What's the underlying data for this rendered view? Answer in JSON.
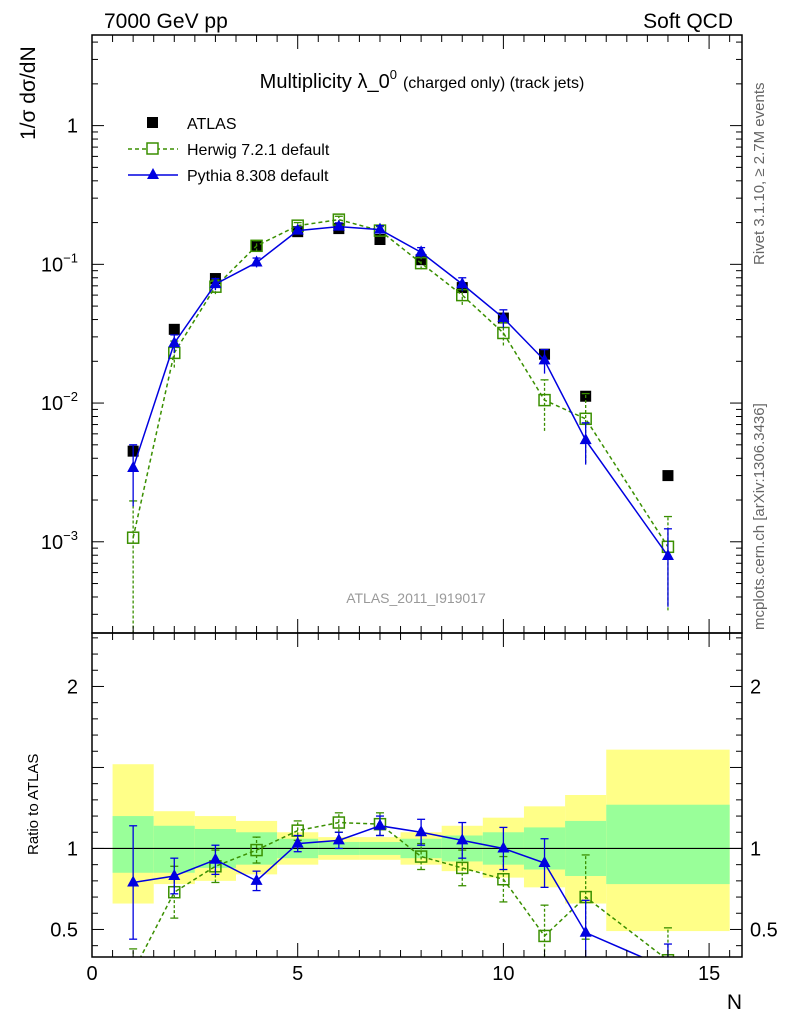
{
  "header": {
    "left": "7000 GeV pp",
    "right": "Soft QCD"
  },
  "side_text": {
    "rivet": "Rivet 3.1.10, ≥ 2.7M events",
    "mcplots": "mcplots.cern.ch [arXiv:1306.3436]"
  },
  "chart_data": {
    "type": "scatter",
    "title_main": "Multiplicity λ_0",
    "title_sup": "0",
    "title_suffix": "(charged only) (track jets)",
    "analysis_id": "ATLAS_2011_I919017",
    "ylabel_top": "1/σ dσ/dN",
    "ylabel_ratio": "Ratio to ATLAS",
    "xlabel": "N",
    "top_yscale": "log",
    "top_ylim": [
      0.00022,
      4.5
    ],
    "top_yticks": [
      {
        "v": 0.001,
        "base": "10",
        "exp": "−3"
      },
      {
        "v": 0.01,
        "base": "10",
        "exp": "−2"
      },
      {
        "v": 0.1,
        "base": "10",
        "exp": "−1"
      },
      {
        "v": 1,
        "base": "1",
        "exp": ""
      }
    ],
    "xlim": [
      0,
      15.8
    ],
    "xticks": [
      0,
      5,
      10,
      15
    ],
    "ratio_ylim": [
      0.33,
      2.33
    ],
    "ratio_yticks": [
      0.5,
      1,
      2
    ],
    "legend_position": "top-left",
    "series": [
      {
        "name": "ATLAS",
        "color": "#000000",
        "marker": "filled-square",
        "x": [
          1,
          2,
          3,
          4,
          5,
          6,
          7,
          8,
          9,
          10,
          11,
          12,
          14
        ],
        "y": [
          0.0045,
          0.034,
          0.079,
          0.136,
          0.172,
          0.181,
          0.151,
          0.108,
          0.068,
          0.041,
          0.0225,
          0.0112,
          0.003
        ]
      },
      {
        "name": "Herwig 7.2.1 default",
        "color": "#3a8f00",
        "marker": "open-square",
        "line": "dashed",
        "x": [
          1,
          2,
          3,
          4,
          5,
          6,
          7,
          8,
          9,
          10,
          11,
          12,
          14
        ],
        "y": [
          0.00107,
          0.023,
          0.069,
          0.136,
          0.19,
          0.21,
          0.175,
          0.102,
          0.06,
          0.032,
          0.0105,
          0.0077,
          0.00092
        ],
        "err": [
          0.0009,
          0.005,
          0.008,
          0.012,
          0.01,
          0.012,
          0.012,
          0.01,
          0.009,
          0.006,
          0.0042,
          0.004,
          0.0006
        ],
        "ratio": [
          0.24,
          0.73,
          0.89,
          0.99,
          1.11,
          1.16,
          1.15,
          0.95,
          0.88,
          0.81,
          0.46,
          0.7,
          0.31
        ],
        "ratio_err": [
          0.14,
          0.16,
          0.1,
          0.08,
          0.06,
          0.06,
          0.07,
          0.08,
          0.11,
          0.14,
          0.19,
          0.26,
          0.2
        ]
      },
      {
        "name": "Pythia 8.308 default",
        "color": "#0000e0",
        "marker": "filled-triangle",
        "line": "solid",
        "x": [
          1,
          2,
          3,
          4,
          5,
          6,
          7,
          8,
          9,
          10,
          11,
          12,
          14
        ],
        "y": [
          0.0034,
          0.027,
          0.072,
          0.103,
          0.175,
          0.187,
          0.178,
          0.122,
          0.072,
          0.041,
          0.0203,
          0.0054,
          0.00079
        ],
        "err": [
          0.0016,
          0.004,
          0.007,
          0.008,
          0.01,
          0.012,
          0.012,
          0.01,
          0.008,
          0.006,
          0.004,
          0.0018,
          0.00045
        ],
        "ratio": [
          0.79,
          0.83,
          0.93,
          0.8,
          1.03,
          1.05,
          1.14,
          1.1,
          1.05,
          1.0,
          0.91,
          0.48,
          0.26
        ],
        "ratio_err": [
          0.35,
          0.11,
          0.09,
          0.06,
          0.05,
          0.05,
          0.06,
          0.08,
          0.11,
          0.13,
          0.15,
          0.2,
          0.15
        ]
      }
    ],
    "data_bands": {
      "edges": [
        0.5,
        1.5,
        2.5,
        3.5,
        4.5,
        5.5,
        6.5,
        7.5,
        8.5,
        9.5,
        10.5,
        11.5,
        12.5,
        15.5
      ],
      "stat_lo": [
        0.85,
        0.85,
        0.88,
        0.9,
        0.94,
        0.96,
        0.96,
        0.94,
        0.92,
        0.9,
        0.87,
        0.83,
        0.78
      ],
      "stat_hi": [
        1.2,
        1.14,
        1.12,
        1.1,
        1.06,
        1.04,
        1.04,
        1.06,
        1.08,
        1.1,
        1.13,
        1.17,
        1.27
      ],
      "tot_lo": [
        0.66,
        0.78,
        0.8,
        0.84,
        0.9,
        0.93,
        0.93,
        0.9,
        0.86,
        0.82,
        0.76,
        0.66,
        0.49
      ],
      "tot_hi": [
        1.52,
        1.23,
        1.2,
        1.17,
        1.1,
        1.07,
        1.07,
        1.1,
        1.14,
        1.19,
        1.26,
        1.33,
        1.61
      ],
      "stat_color": "#99ff99",
      "tot_color": "#ffff88"
    }
  }
}
